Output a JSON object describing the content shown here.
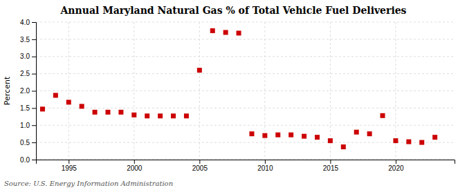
{
  "chart_data": {
    "type": "scatter",
    "title": "Annual Maryland Natural Gas % of Total Vehicle Fuel Deliveries",
    "ylabel": "Percent",
    "annotations": [
      "Source: U.S. Energy Information Administration"
    ],
    "x": [
      1993,
      1994,
      1995,
      1996,
      1997,
      1998,
      1999,
      2000,
      2001,
      2002,
      2003,
      2004,
      2005,
      2006,
      2007,
      2008,
      2009,
      2010,
      2011,
      2012,
      2013,
      2014,
      2015,
      2016,
      2017,
      2018,
      2019,
      2020,
      2021,
      2022,
      2023
    ],
    "values": [
      1.47,
      1.87,
      1.67,
      1.55,
      1.38,
      1.38,
      1.38,
      1.3,
      1.27,
      1.27,
      1.27,
      1.27,
      2.6,
      3.75,
      3.7,
      3.68,
      0.75,
      0.7,
      0.72,
      0.72,
      0.68,
      0.65,
      0.55,
      0.37,
      0.8,
      0.75,
      1.28,
      0.55,
      0.52,
      0.5,
      0.65
    ],
    "color": "#cc0000",
    "marker": "square",
    "xlim": [
      1992.5,
      2024.5
    ],
    "ylim": [
      0.0,
      4.0
    ],
    "xticks": [
      1995,
      2000,
      2005,
      2010,
      2015,
      2020
    ],
    "yticks": [
      {
        "value": 0.0,
        "label": "0.0"
      },
      0.5,
      {
        "value": 1.0,
        "label": "1.0"
      },
      1.5,
      {
        "value": 2.0,
        "label": "2.0"
      },
      2.5,
      {
        "value": 3.0,
        "label": "3.0"
      },
      3.5,
      {
        "value": 4.0,
        "label": "4.0"
      }
    ],
    "grid": true
  }
}
